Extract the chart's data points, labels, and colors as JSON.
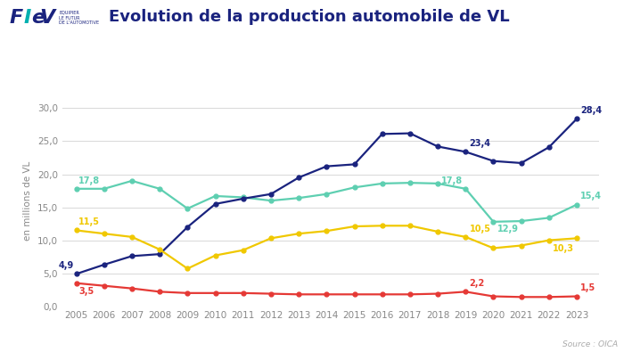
{
  "years": [
    2005,
    2006,
    2007,
    2008,
    2009,
    2010,
    2011,
    2012,
    2013,
    2014,
    2015,
    2016,
    2017,
    2018,
    2019,
    2020,
    2021,
    2022,
    2023
  ],
  "UE_UK": [
    17.8,
    17.8,
    19.0,
    17.8,
    14.8,
    16.7,
    16.5,
    16.0,
    16.4,
    17.0,
    18.0,
    18.6,
    18.7,
    18.6,
    17.8,
    12.8,
    12.9,
    13.4,
    15.4
  ],
  "Chine": [
    4.9,
    6.3,
    7.6,
    7.9,
    12.0,
    15.5,
    16.3,
    17.0,
    19.5,
    21.2,
    21.5,
    26.1,
    26.2,
    24.2,
    23.4,
    22.0,
    21.7,
    24.1,
    28.4
  ],
  "France": [
    3.5,
    3.1,
    2.7,
    2.2,
    2.0,
    2.0,
    2.0,
    1.9,
    1.8,
    1.8,
    1.8,
    1.8,
    1.8,
    1.9,
    2.2,
    1.5,
    1.4,
    1.4,
    1.5
  ],
  "USA": [
    11.5,
    11.0,
    10.5,
    8.6,
    5.7,
    7.7,
    8.5,
    10.3,
    11.0,
    11.4,
    12.1,
    12.2,
    12.2,
    11.3,
    10.5,
    8.8,
    9.2,
    10.0,
    10.3
  ],
  "color_UE_UK": "#5ecfb1",
  "color_Chine": "#1a237e",
  "color_France": "#e53935",
  "color_USA": "#f0c800",
  "title": "Evolution de la production automobile de VL",
  "ylabel": "en millions de VL",
  "ylim": [
    0,
    32
  ],
  "yticks": [
    0.0,
    5.0,
    10.0,
    15.0,
    20.0,
    25.0,
    30.0
  ],
  "ytick_labels": [
    "0,0",
    "5,0",
    "10,0",
    "15,0",
    "20,0",
    "25,0",
    "30,0"
  ],
  "source": "Source : OICA",
  "background_color": "#ffffff",
  "grid_color": "#d8d8d8",
  "tick_color": "#888888",
  "fiev_color": "#1a237e",
  "title_color": "#1a237e"
}
